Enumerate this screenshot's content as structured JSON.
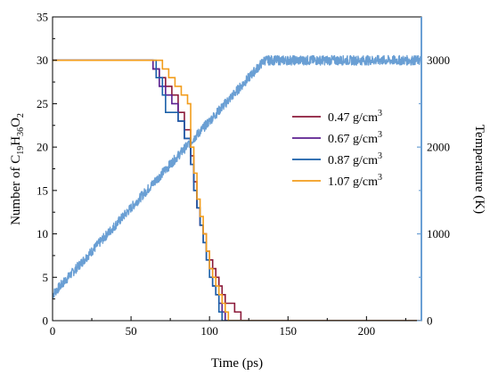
{
  "chart_data": {
    "type": "line",
    "xlabel": "Time (ps)",
    "ylabel_left": {
      "main": "Number of C",
      "sub1": "19",
      "mid1": "H",
      "sub2": "36",
      "mid2": "O",
      "sub3": "2"
    },
    "ylabel_right": "Temperature (K)",
    "xlim": [
      0,
      235
    ],
    "ylim_left": [
      0,
      35
    ],
    "ylim_right": [
      0,
      3500
    ],
    "x_ticks": [
      "0",
      "50",
      "100",
      "150",
      "200"
    ],
    "y_ticks_left": [
      "0",
      "5",
      "10",
      "15",
      "20",
      "25",
      "30",
      "35"
    ],
    "y_ticks_right": [
      "0",
      "1000",
      "2000",
      "3000"
    ],
    "legend_position": "center-right",
    "temperature_series": {
      "color": "#6a9fd4",
      "axis": "right",
      "x": [
        0,
        135,
        235
      ],
      "values": [
        300,
        3000,
        3000
      ]
    },
    "series": [
      {
        "name": "0.47 g/cm",
        "unit_sup": "3",
        "color": "#8b1a3a",
        "x": [
          0,
          60,
          64,
          68,
          72,
          76,
          80,
          84,
          88,
          90,
          92,
          94,
          96,
          98,
          100,
          102,
          104,
          106,
          108,
          110,
          112,
          114,
          116,
          118,
          120,
          235
        ],
        "values": [
          30,
          30,
          29,
          28,
          27,
          26,
          24,
          22,
          19,
          16,
          13,
          11,
          10,
          8,
          7,
          6,
          5,
          4,
          3,
          2,
          2,
          2,
          1,
          1,
          0,
          0
        ]
      },
      {
        "name": "0.67 g/cm",
        "unit_sup": "3",
        "color": "#5b1f8f",
        "x": [
          0,
          60,
          64,
          68,
          72,
          76,
          80,
          84,
          88,
          90,
          92,
          94,
          96,
          98,
          100,
          102,
          104,
          106,
          108,
          110,
          235
        ],
        "values": [
          30,
          30,
          29,
          27,
          26,
          25,
          23,
          21,
          18,
          15,
          13,
          11,
          9,
          7,
          6,
          4,
          3,
          2,
          1,
          0,
          0
        ]
      },
      {
        "name": "0.87 g/cm",
        "unit_sup": "3",
        "color": "#1a5fa8",
        "x": [
          0,
          62,
          66,
          70,
          72,
          76,
          80,
          84,
          88,
          90,
          92,
          94,
          96,
          98,
          100,
          102,
          104,
          106,
          108,
          235
        ],
        "values": [
          30,
          30,
          28,
          26,
          24,
          24,
          23,
          21,
          18,
          15,
          13,
          11,
          9,
          7,
          5,
          4,
          3,
          1,
          0,
          0
        ]
      },
      {
        "name": "1.07 g/cm",
        "unit_sup": "3",
        "color": "#f29d1c",
        "x": [
          0,
          66,
          70,
          74,
          78,
          82,
          86,
          88,
          90,
          92,
          94,
          96,
          98,
          100,
          102,
          104,
          106,
          108,
          110,
          112,
          235
        ],
        "values": [
          30,
          30,
          29,
          28,
          27,
          26,
          25,
          20,
          17,
          14,
          12,
          10,
          8,
          6,
          5,
          4,
          3,
          2,
          1,
          0,
          0
        ]
      }
    ]
  }
}
